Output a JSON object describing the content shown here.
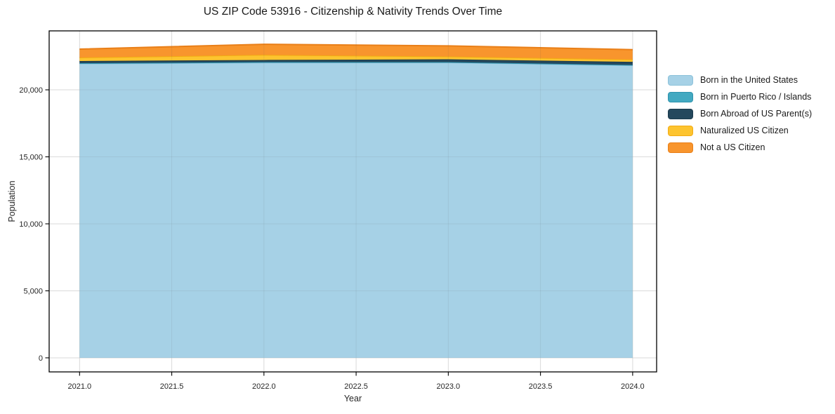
{
  "chart_data": {
    "type": "area",
    "stacked": true,
    "title": "US ZIP Code 53916 - Citizenship & Nativity Trends Over Time",
    "xlabel": "Year",
    "ylabel": "Population",
    "x": [
      2021,
      2022,
      2023,
      2024
    ],
    "series": [
      {
        "name": "Born in the United States",
        "color": "#a6d1e6",
        "line_color": "#8cc2da",
        "values": [
          21950,
          22030,
          22040,
          21830
        ]
      },
      {
        "name": "Born in Puerto Rico / Islands",
        "color": "#42a9c1",
        "line_color": "#2f93ad",
        "values": [
          40,
          40,
          30,
          30
        ]
      },
      {
        "name": "Born Abroad of US Parent(s)",
        "color": "#24485d",
        "line_color": "#1b3a4c",
        "values": [
          160,
          160,
          210,
          230
        ]
      },
      {
        "name": "Naturalized US Citizen",
        "color": "#fdc42f",
        "line_color": "#f2ab13",
        "values": [
          260,
          380,
          210,
          180
        ]
      },
      {
        "name": "Not a US Citizen",
        "color": "#f8952d",
        "line_color": "#e97f18",
        "values": [
          630,
          790,
          790,
          730
        ]
      }
    ],
    "x_ticks": {
      "values": [
        2021.0,
        2021.5,
        2022.0,
        2022.5,
        2023.0,
        2023.5,
        2024.0
      ],
      "labels": [
        "2021.0",
        "2021.5",
        "2022.0",
        "2022.5",
        "2023.0",
        "2023.5",
        "2024.0"
      ]
    },
    "y_ticks": {
      "values": [
        0,
        5000,
        10000,
        15000,
        20000
      ],
      "labels": [
        "0",
        "5,000",
        "10,000",
        "15,000",
        "20,000"
      ]
    },
    "xlim": [
      2020.835,
      2024.13
    ],
    "ylim": [
      -1050,
      24400
    ],
    "grid": true,
    "legend_position": "right-outside",
    "background_color": "#ffffff",
    "grid_color": "#e9e9e9",
    "border_color": "#000000"
  }
}
